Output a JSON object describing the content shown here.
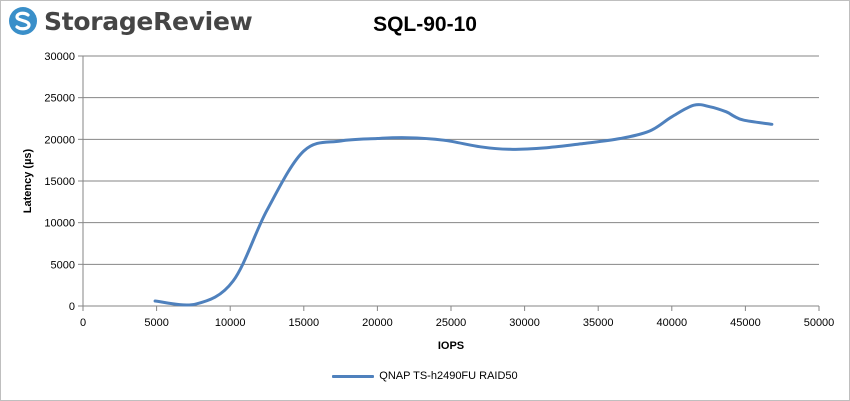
{
  "brand": {
    "name": "StorageReview"
  },
  "chart_data": {
    "type": "line",
    "title": "SQL-90-10",
    "xlabel": "IOPS",
    "ylabel": "Latency (µs)",
    "xlim": [
      0,
      50000
    ],
    "ylim": [
      0,
      30000
    ],
    "x_ticks": [
      0,
      5000,
      10000,
      15000,
      20000,
      25000,
      30000,
      35000,
      40000,
      45000,
      50000
    ],
    "y_ticks": [
      0,
      5000,
      10000,
      15000,
      20000,
      25000,
      30000
    ],
    "grid": "horizontal",
    "legend_position": "bottom",
    "series": [
      {
        "name": "QNAP TS-h2490FU RAID50",
        "color": "#4f81bd",
        "x": [
          4900,
          7700,
          10200,
          12500,
          15000,
          17500,
          20000,
          22000,
          24500,
          27000,
          29000,
          31500,
          34000,
          36500,
          38500,
          40000,
          41500,
          42600,
          43700,
          44200,
          44900,
          46800
        ],
        "y": [
          600,
          250,
          3000,
          11500,
          18600,
          19800,
          20100,
          20200,
          19900,
          19100,
          18800,
          19000,
          19500,
          20100,
          21000,
          22700,
          24100,
          23900,
          23300,
          22800,
          22300,
          21800
        ]
      }
    ]
  }
}
